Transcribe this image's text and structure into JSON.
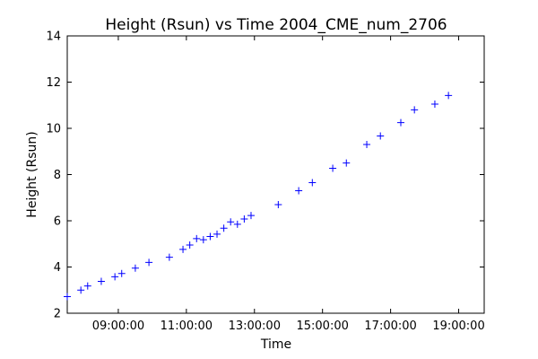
{
  "chart_data": {
    "type": "scatter",
    "title": "Height (Rsun) vs Time 2004_CME_num_2706",
    "xlabel": "Time",
    "ylabel": "Height (Rsun)",
    "xlim": [
      "07:30:00",
      "19:45:00"
    ],
    "ylim": [
      2,
      14
    ],
    "xticks": [
      "09:00:00",
      "11:00:00",
      "13:00:00",
      "15:00:00",
      "17:00:00",
      "19:00:00"
    ],
    "yticks": [
      2,
      4,
      6,
      8,
      10,
      12,
      14
    ],
    "grid": false,
    "marker": "+",
    "color": "#0000ff",
    "x": [
      "07:30:00",
      "07:54:00",
      "08:06:00",
      "08:30:00",
      "08:54:00",
      "09:06:00",
      "09:30:00",
      "09:54:00",
      "10:30:00",
      "10:54:00",
      "11:06:00",
      "11:18:00",
      "11:30:00",
      "11:42:00",
      "11:54:00",
      "12:06:00",
      "12:18:00",
      "12:30:00",
      "12:42:00",
      "12:54:00",
      "13:42:00",
      "14:18:00",
      "14:42:00",
      "15:18:00",
      "15:42:00",
      "16:18:00",
      "16:42:00",
      "17:18:00",
      "17:42:00",
      "18:18:00",
      "18:42:00"
    ],
    "y": [
      2.72,
      3.0,
      3.18,
      3.38,
      3.58,
      3.72,
      3.95,
      4.2,
      4.42,
      4.76,
      4.95,
      5.23,
      5.18,
      5.32,
      5.42,
      5.68,
      5.95,
      5.85,
      6.08,
      6.23,
      6.7,
      7.3,
      7.65,
      8.27,
      8.5,
      9.3,
      9.67,
      10.25,
      10.8,
      11.05,
      11.42
    ]
  }
}
